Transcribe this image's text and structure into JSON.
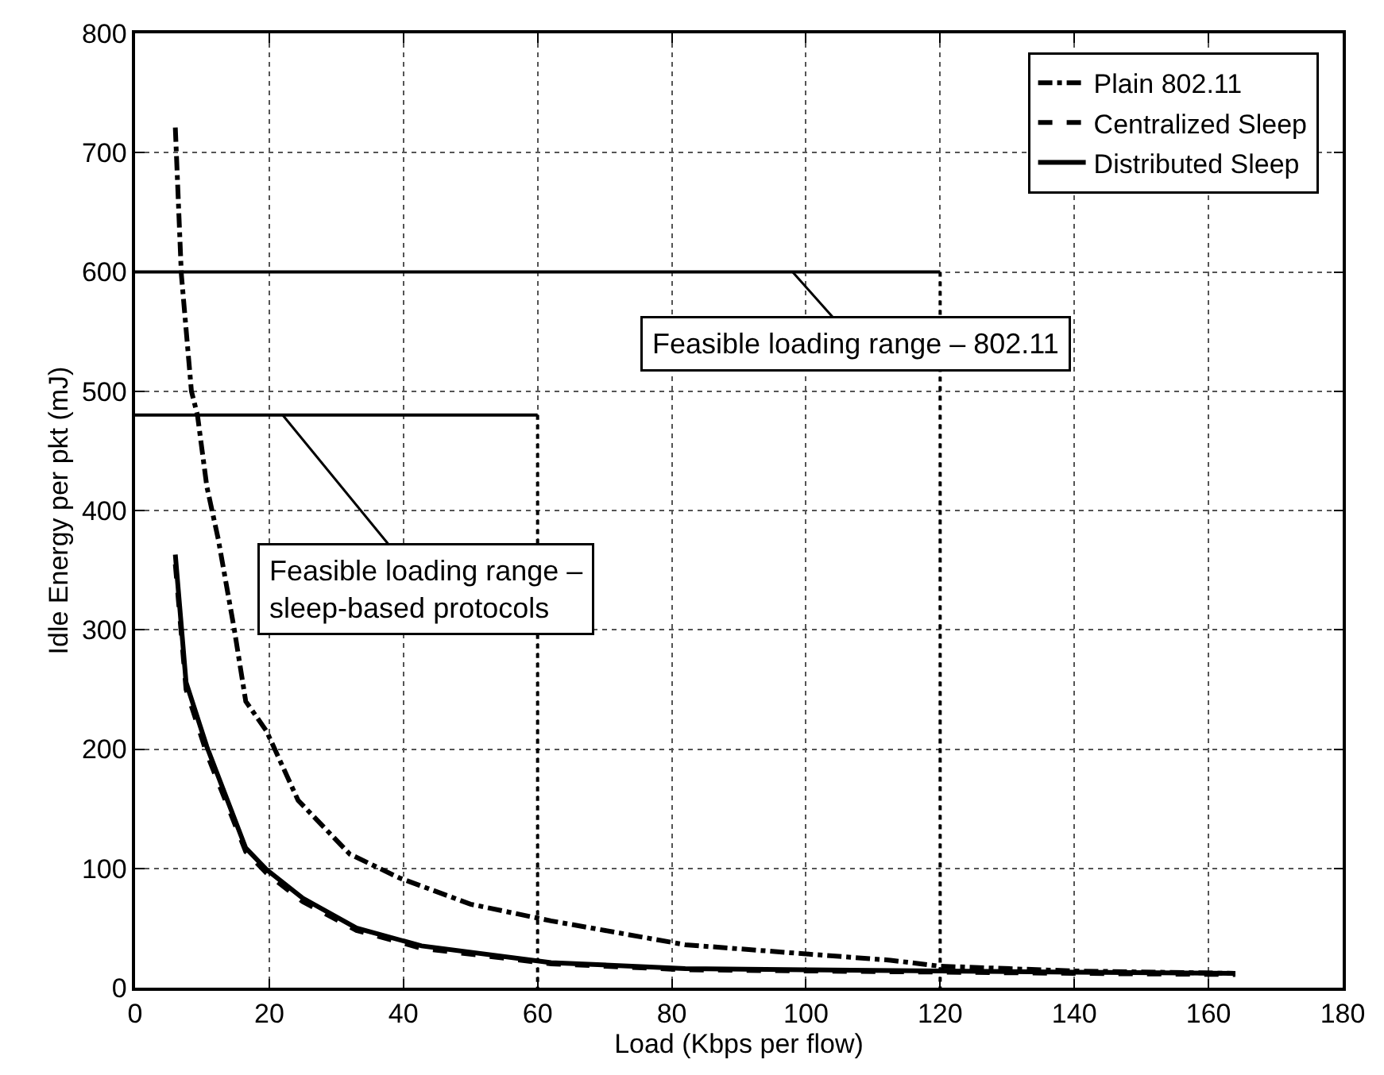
{
  "chart_data": {
    "type": "line",
    "xlabel": "Load (Kbps per flow)",
    "ylabel": "Idle Energy per pkt (mJ)",
    "xlim": [
      0,
      180
    ],
    "xticks": [
      0,
      20,
      40,
      60,
      80,
      100,
      120,
      140,
      160,
      180
    ],
    "ylim": [
      0,
      800
    ],
    "yticks": [
      0,
      100,
      200,
      300,
      400,
      500,
      600,
      700,
      800
    ],
    "grid": true,
    "legend": "top right",
    "marker": "none",
    "series": [
      {
        "name": "Plain 802.11",
        "color": "#000000",
        "line_style": "dashdot",
        "x": [
          6.0,
          6.9,
          8.4,
          9.3,
          10.7,
          12.4,
          14.8,
          16.5,
          19.6,
          24.3,
          32,
          39.4,
          50,
          62,
          82,
          100.7,
          112.6,
          120,
          140,
          164
        ],
        "values": [
          721,
          598,
          500,
          480,
          420,
          376,
          300,
          240,
          215,
          157,
          112,
          92,
          70,
          56,
          36,
          28,
          23,
          18,
          14,
          12
        ]
      },
      {
        "name": "Centralized Sleep",
        "color": "#000000",
        "line_style": "dashed",
        "x": [
          6.0,
          7.6,
          10.7,
          16.5,
          19.6,
          25,
          33,
          42.7,
          62,
          82,
          100,
          120,
          140,
          164
        ],
        "values": [
          355,
          250,
          196,
          114,
          96,
          72,
          48,
          33,
          20,
          15,
          14,
          13,
          12,
          11
        ]
      },
      {
        "name": "Distributed Sleep",
        "color": "#000000",
        "line_style": "solid",
        "x": [
          6.0,
          7.6,
          10.7,
          16.5,
          19.6,
          25,
          33,
          42.7,
          62,
          82,
          100,
          120,
          140,
          164
        ],
        "values": [
          363,
          256,
          202,
          117,
          99,
          75,
          50,
          35,
          21,
          16,
          15,
          14,
          13,
          12
        ]
      },
      {
        "color": "#000000",
        "line_style": "solid",
        "x": [
          0,
          120
        ],
        "values": [
          600,
          600
        ]
      },
      {
        "color": "#000000",
        "line_style": "dotted",
        "x": [
          120,
          120
        ],
        "values": [
          600,
          0
        ]
      },
      {
        "color": "#000000",
        "line_style": "solid",
        "x": [
          0,
          60
        ],
        "values": [
          480,
          480
        ]
      },
      {
        "color": "#000000",
        "line_style": "dotted",
        "x": [
          60,
          60
        ],
        "values": [
          480,
          0
        ]
      }
    ],
    "annotations": [
      {
        "text": "Feasible loading range – 802.11",
        "x": 98,
        "y": 600
      },
      {
        "text": "Feasible loading range –\nsleep-based protocols",
        "x": 22,
        "y": 480
      }
    ]
  }
}
